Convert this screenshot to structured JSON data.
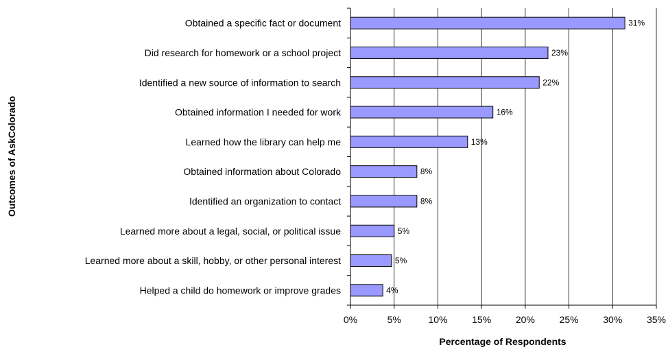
{
  "chart_data": {
    "type": "bar",
    "orientation": "horizontal",
    "categories": [
      "Obtained a specific fact or document",
      "Did research for homework or a school project",
      "Identified a new source of information to search",
      "Obtained information I needed for work",
      "Learned how the library can help me",
      "Obtained information about Colorado",
      "Identified an organization to contact",
      "Learned more about a legal, social, or political issue",
      "Learned more about a skill, hobby, or other personal interest",
      "Helped a child do homework or improve grades"
    ],
    "values": [
      31.4,
      22.6,
      21.6,
      16.3,
      13.4,
      7.6,
      7.6,
      5.0,
      4.7,
      3.7
    ],
    "data_labels": [
      "31%",
      "23%",
      "22%",
      "16%",
      "13%",
      "8%",
      "8%",
      "5%",
      "5%",
      "4%"
    ],
    "xlabel": "Percentage of Respondents",
    "ylabel": "Outcomes of AskColorado",
    "xlim": [
      0,
      35
    ],
    "xticks": [
      0,
      5,
      10,
      15,
      20,
      25,
      30,
      35
    ],
    "xtick_labels": [
      "0%",
      "5%",
      "10%",
      "15%",
      "20%",
      "25%",
      "30%",
      "35%"
    ],
    "grid": "vertical",
    "legend": "none",
    "colors": {
      "bar_fill": "#9999ff",
      "bar_stroke": "#000000",
      "grid": "#000000"
    }
  }
}
